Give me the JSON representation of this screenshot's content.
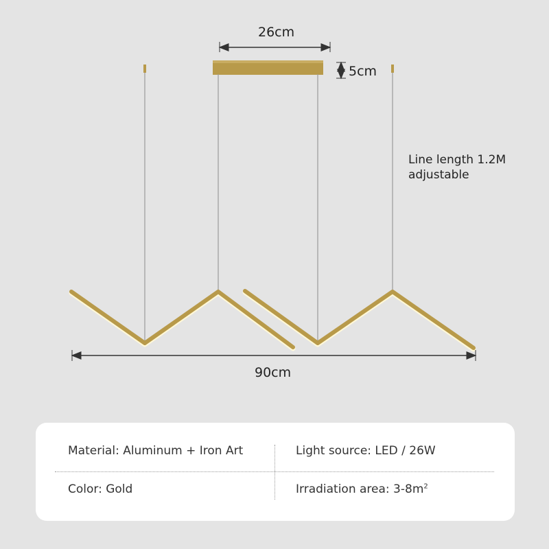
{
  "dimensions": {
    "canopy_width": "26cm",
    "canopy_height": "5cm",
    "total_width": "90cm"
  },
  "note": {
    "line1": "Line length 1.2M",
    "line2": "adjustable"
  },
  "specs": [
    {
      "label": "Material: Aluminum + Iron Art"
    },
    {
      "label": "Light source: LED / 26W"
    },
    {
      "label": "Color: Gold"
    },
    {
      "label": "Irradiation area: 3-8m",
      "superscript": "2"
    }
  ],
  "colors": {
    "gold": "#b89a4a",
    "background": "#e4e4e4",
    "arrow": "#333333"
  }
}
